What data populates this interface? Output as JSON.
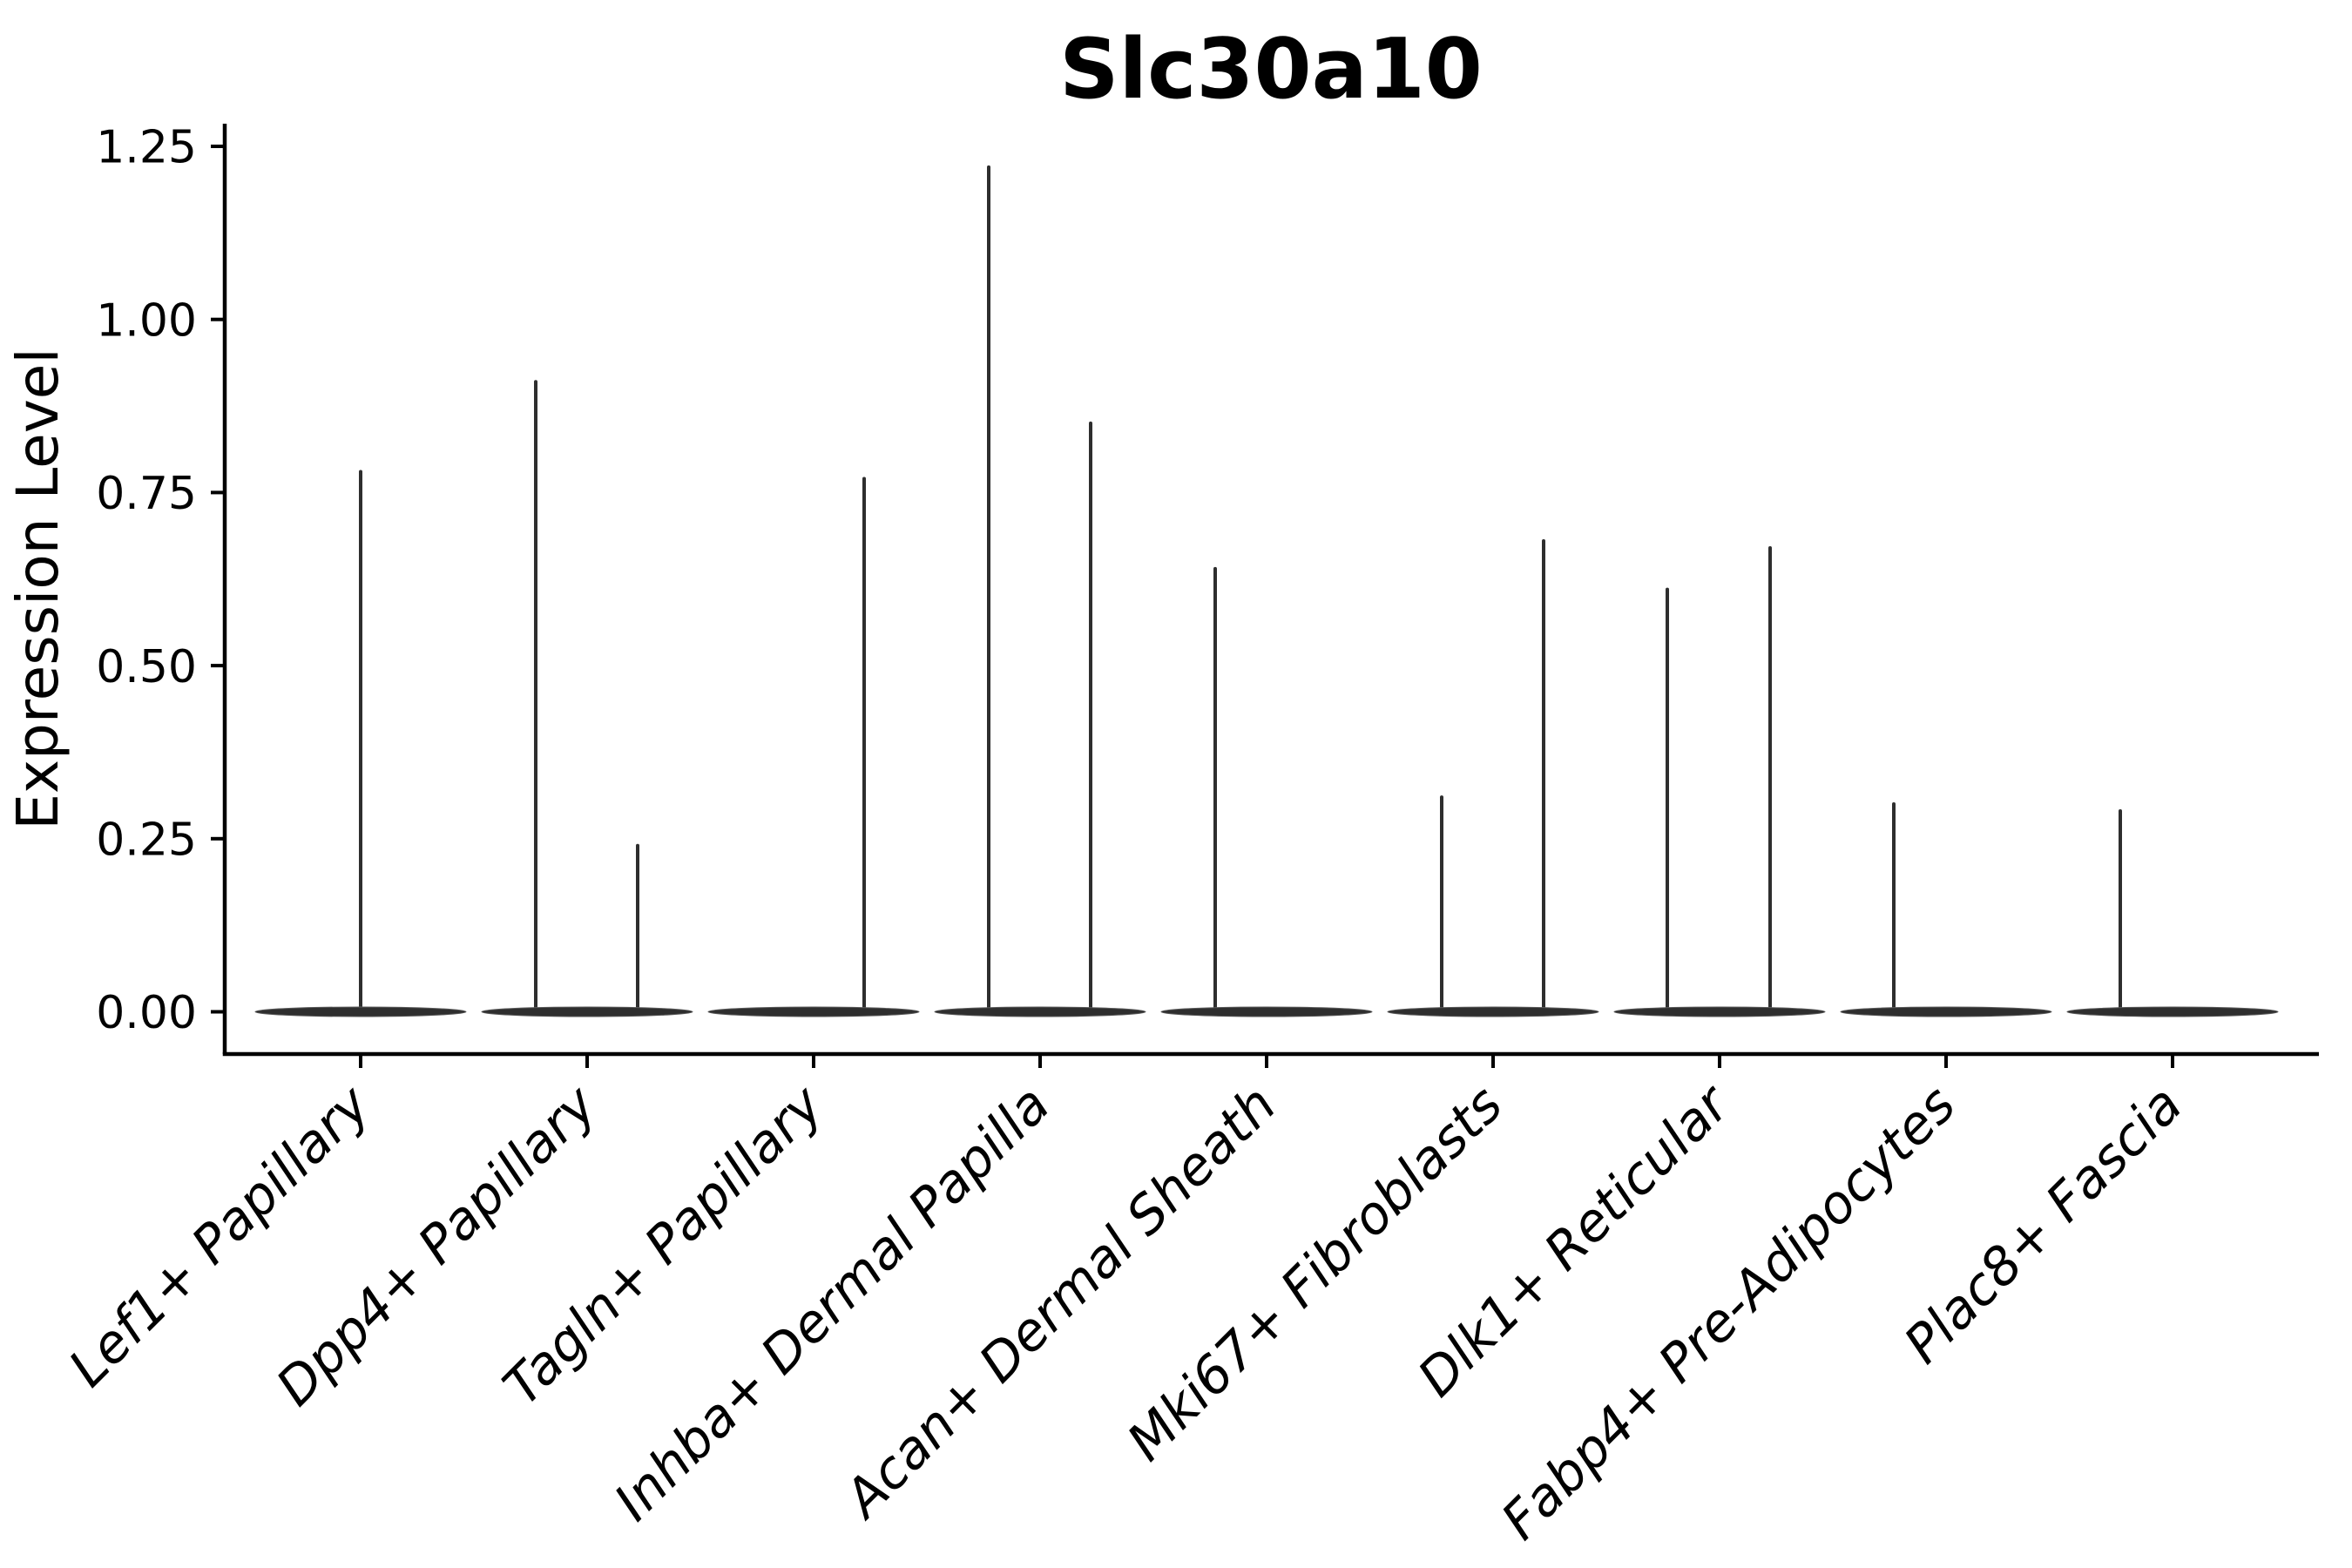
{
  "figure": {
    "title": "Slc30a10",
    "ylabel": "Expression Level",
    "background_color": "#ffffff",
    "axis_color": "#000000",
    "violin_color": "#2e2e2e"
  },
  "chart_data": {
    "type": "violin",
    "title": "Slc30a10",
    "xlabel": "",
    "ylabel": "Expression Level",
    "grid": false,
    "legend": null,
    "ylim": [
      -0.061,
      1.283
    ],
    "y_ticks": [
      {
        "value": 0.0,
        "label": "0.00"
      },
      {
        "value": 0.25,
        "label": "0.25"
      },
      {
        "value": 0.5,
        "label": "0.50"
      },
      {
        "value": 0.75,
        "label": "0.75"
      },
      {
        "value": 1.0,
        "label": "1.00"
      },
      {
        "value": 1.25,
        "label": "1.25"
      }
    ],
    "categories": [
      "Lef1+ Papillary",
      "Dpp4+ Papillary",
      "Tagln+ Papillary",
      "Inhba+ Dermal Papilla",
      "Acan+ Dermal Sheath",
      "Mki67+ Fibroblasts",
      "Dlk1+ Reticular",
      "Fabp4+ Pre-Adipocytes",
      "Plac8+ Fascia"
    ],
    "violins": [
      {
        "category": "Lef1+ Papillary",
        "base_value": 0.0,
        "peaks": [
          {
            "dx": 0,
            "max": 0.78
          }
        ]
      },
      {
        "category": "Dpp4+ Papillary",
        "base_value": 0.0,
        "peaks": [
          {
            "dx": -59,
            "max": 0.91
          },
          {
            "dx": 58,
            "max": 0.24
          }
        ]
      },
      {
        "category": "Tagln+ Papillary",
        "base_value": 0.0,
        "peaks": [
          {
            "dx": 58,
            "max": 0.77
          }
        ]
      },
      {
        "category": "Inhba+ Dermal Papilla",
        "base_value": 0.0,
        "peaks": [
          {
            "dx": -59,
            "max": 1.22
          },
          {
            "dx": 58,
            "max": 0.85
          }
        ]
      },
      {
        "category": "Acan+ Dermal Sheath",
        "base_value": 0.0,
        "peaks": [
          {
            "dx": -59,
            "max": 0.64
          }
        ]
      },
      {
        "category": "Mki67+ Fibroblasts",
        "base_value": 0.0,
        "peaks": [
          {
            "dx": -59,
            "max": 0.31
          },
          {
            "dx": 58,
            "max": 0.68
          }
        ]
      },
      {
        "category": "Dlk1+ Reticular",
        "base_value": 0.0,
        "peaks": [
          {
            "dx": -60,
            "max": 0.61
          },
          {
            "dx": 58,
            "max": 0.67
          }
        ]
      },
      {
        "category": "Fabp4+ Pre-Adipocytes",
        "base_value": 0.0,
        "peaks": [
          {
            "dx": -60,
            "max": 0.3
          }
        ]
      },
      {
        "category": "Plac8+ Fascia",
        "base_value": 0.0,
        "peaks": [
          {
            "dx": -60,
            "max": 0.29
          }
        ]
      }
    ]
  }
}
